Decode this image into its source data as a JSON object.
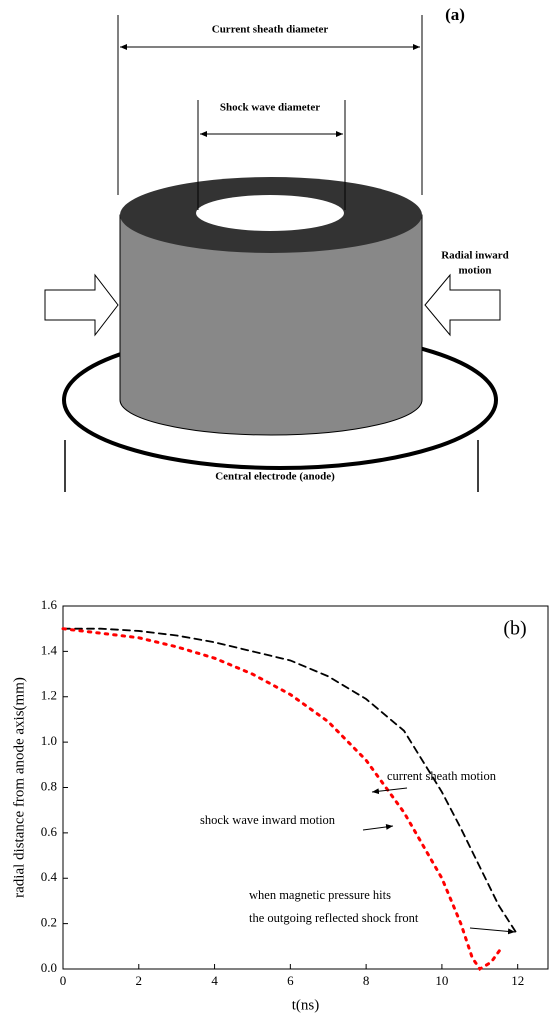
{
  "diagram": {
    "label": "(a)",
    "current_sheath": "Current sheath diameter",
    "shock_wave": "Shock wave diameter",
    "radial_motion": [
      "Radial inward",
      "motion"
    ],
    "electrode": "Central electrode (anode)"
  },
  "chart_data": {
    "type": "line",
    "label": "(b)",
    "x_label": "t(ns)",
    "y_label": "radial distance from anode axis(mm)",
    "xlim": [
      0,
      12.8
    ],
    "ylim": [
      0,
      1.6
    ],
    "xticks": [
      0,
      2,
      4,
      6,
      8,
      10,
      12
    ],
    "yticks": [
      {
        "value": 0,
        "label": "0.0"
      },
      {
        "value": 0.2,
        "label": "0.2"
      },
      {
        "value": 0.4,
        "label": "0.4"
      },
      {
        "value": 0.6,
        "label": "0.6"
      },
      {
        "value": 0.8,
        "label": "0.8"
      },
      {
        "value": 1.0,
        "label": "1.0"
      },
      {
        "value": 1.2,
        "label": "1.2"
      },
      {
        "value": 1.4,
        "label": "1.4"
      },
      {
        "value": 1.6,
        "label": "1.6"
      }
    ],
    "series": [
      {
        "color": "#000000",
        "style": "dashed",
        "x": [
          0,
          1,
          2,
          3,
          4,
          5,
          6,
          7,
          8,
          9,
          10,
          10.5,
          11,
          11.5,
          12
        ],
        "values": [
          1.5,
          1.5,
          1.49,
          1.47,
          1.44,
          1.4,
          1.36,
          1.29,
          1.19,
          1.05,
          0.78,
          0.62,
          0.45,
          0.28,
          0.15
        ]
      },
      {
        "color": "#ff0000",
        "style": "dotted",
        "x": [
          0,
          1,
          2,
          3,
          4,
          5,
          6,
          7,
          8,
          9,
          10,
          10.5,
          10.8,
          11,
          11.3,
          11.6
        ],
        "values": [
          1.5,
          1.48,
          1.46,
          1.42,
          1.37,
          1.3,
          1.21,
          1.09,
          0.92,
          0.69,
          0.4,
          0.2,
          0.05,
          0.0,
          0.03,
          0.1
        ]
      }
    ],
    "annotations": [
      "current sheath motion",
      "shock wave inward motion",
      "when magnetic pressure hits",
      "the outgoing reflected shock front"
    ]
  }
}
